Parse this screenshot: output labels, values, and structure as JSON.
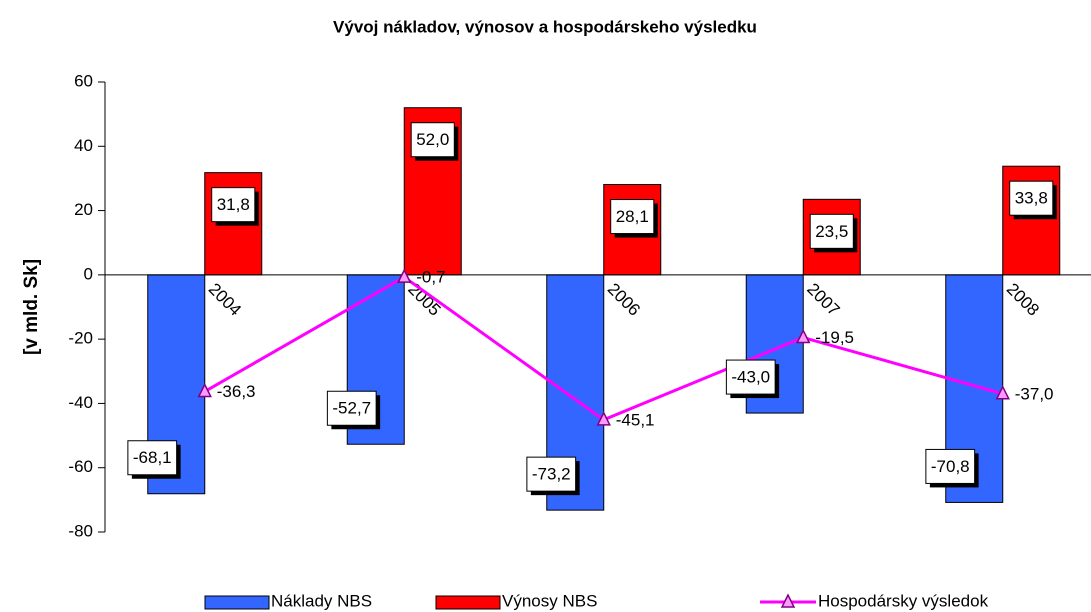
{
  "chart_data": {
    "type": "bar_line",
    "title": "Vývoj nákladov, výnosov a hospodárskeho výsledku",
    "y_label": "[v mld. Sk]",
    "categories": [
      "2004",
      "2005",
      "2006",
      "2007",
      "2008"
    ],
    "series": [
      {
        "name": "Náklady NBS",
        "type": "bar",
        "color": "#3366ff",
        "values": [
          -68.1,
          -52.7,
          -73.2,
          -43.0,
          -70.8
        ],
        "value_labels": [
          "-68,1",
          "-52,7",
          "-73,2",
          "-43,0",
          "-70,8"
        ]
      },
      {
        "name": "Výnosy NBS",
        "type": "bar",
        "color": "#ff0000",
        "values": [
          31.8,
          52.0,
          28.1,
          23.5,
          33.8
        ],
        "value_labels": [
          "31,8",
          "52,0",
          "28,1",
          "23,5",
          "33,8"
        ]
      },
      {
        "name": "Hospodársky výsledok",
        "type": "line",
        "color": "#ff00ff",
        "values": [
          -36.3,
          -0.7,
          -45.1,
          -19.5,
          -37.0
        ],
        "value_labels": [
          "-36,3",
          "-0,7",
          "-45,1",
          "-19,5",
          "-37,0"
        ]
      }
    ],
    "ylim": [
      -80,
      60
    ],
    "yticks": [
      -80,
      -60,
      -40,
      -20,
      0,
      20,
      40,
      60
    ],
    "legend": "bottom"
  }
}
